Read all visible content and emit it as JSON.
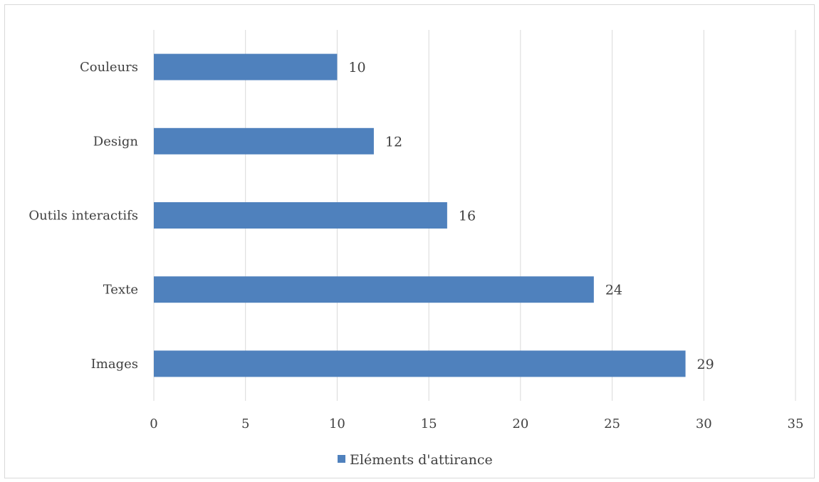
{
  "chart_data": {
    "type": "bar",
    "orientation": "horizontal",
    "categories": [
      "Couleurs",
      "Design",
      "Outils interactifs",
      "Texte",
      "Images"
    ],
    "series": [
      {
        "name": "Eléments d'attirance",
        "values": [
          10,
          12,
          16,
          24,
          29
        ],
        "color": "#4f81bd"
      }
    ],
    "xlim": [
      0,
      35
    ],
    "xticks": [
      0,
      5,
      10,
      15,
      20,
      25,
      30,
      35
    ],
    "grid": "vertical",
    "data_labels": true,
    "legend_position": "bottom"
  }
}
